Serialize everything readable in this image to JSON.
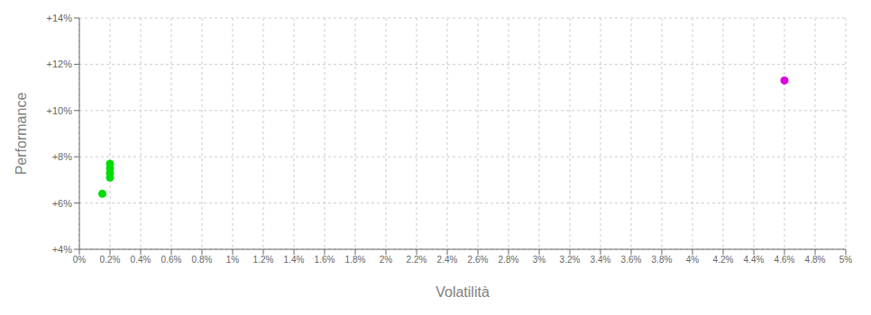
{
  "chart_data": {
    "type": "scatter",
    "xlabel": "Volatilità",
    "ylabel": "Performance",
    "xlim": [
      0,
      0.05
    ],
    "ylim": [
      0.04,
      0.14
    ],
    "xticks": [
      {
        "value": 0.0,
        "label": "0%"
      },
      {
        "value": 0.002,
        "label": "0.2%"
      },
      {
        "value": 0.004,
        "label": "0.4%"
      },
      {
        "value": 0.006,
        "label": "0.6%"
      },
      {
        "value": 0.008,
        "label": "0.8%"
      },
      {
        "value": 0.01,
        "label": "1%"
      },
      {
        "value": 0.012,
        "label": "1.2%"
      },
      {
        "value": 0.014,
        "label": "1.4%"
      },
      {
        "value": 0.016,
        "label": "1.6%"
      },
      {
        "value": 0.018,
        "label": "1.8%"
      },
      {
        "value": 0.02,
        "label": "2%"
      },
      {
        "value": 0.022,
        "label": "2.2%"
      },
      {
        "value": 0.024,
        "label": "2.4%"
      },
      {
        "value": 0.026,
        "label": "2.6%"
      },
      {
        "value": 0.028,
        "label": "2.8%"
      },
      {
        "value": 0.03,
        "label": "3%"
      },
      {
        "value": 0.032,
        "label": "3.2%"
      },
      {
        "value": 0.034,
        "label": "3.4%"
      },
      {
        "value": 0.036,
        "label": "3.6%"
      },
      {
        "value": 0.038,
        "label": "3.8%"
      },
      {
        "value": 0.04,
        "label": "4%"
      },
      {
        "value": 0.042,
        "label": "4.2%"
      },
      {
        "value": 0.044,
        "label": "4.4%"
      },
      {
        "value": 0.046,
        "label": "4.6%"
      },
      {
        "value": 0.048,
        "label": "4.8%"
      },
      {
        "value": 0.05,
        "label": "5%"
      }
    ],
    "yticks": [
      {
        "value": 0.04,
        "label": "+4%"
      },
      {
        "value": 0.06,
        "label": "+6%"
      },
      {
        "value": 0.08,
        "label": "+8%"
      },
      {
        "value": 0.1,
        "label": "+10%"
      },
      {
        "value": 0.12,
        "label": "+12%"
      },
      {
        "value": 0.14,
        "label": "+14%"
      }
    ],
    "grid": true,
    "series": [
      {
        "color": "#00dd00",
        "x": [
          0.002,
          0.002,
          0.002,
          0.002,
          0.0015
        ],
        "values": [
          0.077,
          0.075,
          0.073,
          0.071,
          0.064
        ]
      },
      {
        "color": "#dd00dd",
        "x": [
          0.046
        ],
        "values": [
          0.113
        ]
      }
    ]
  }
}
